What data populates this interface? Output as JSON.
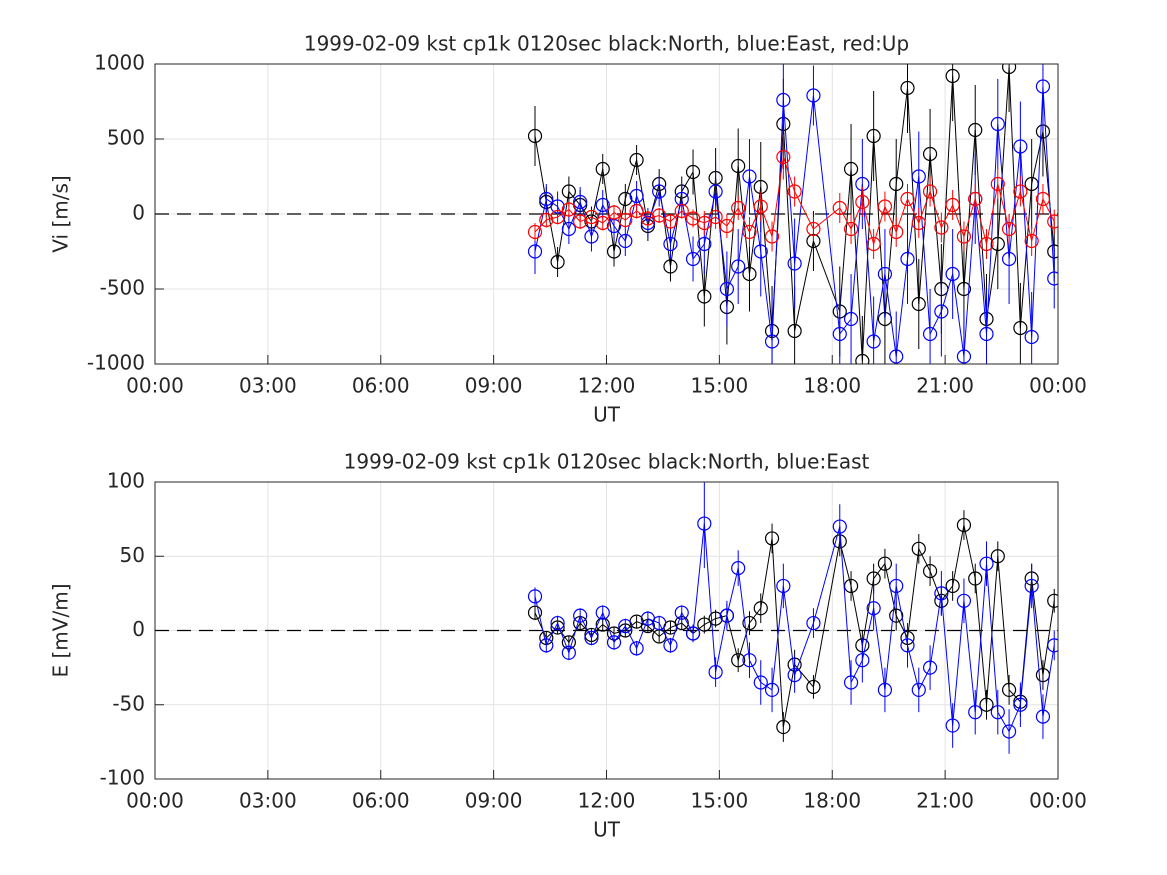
{
  "chart_data": [
    {
      "type": "errorbar",
      "title": "1999-02-09 kst cp1k 0120sec black:North, blue:East, red:Up",
      "xlabel": "UT",
      "ylabel": "Vi [m/s]",
      "xlim": [
        0,
        24
      ],
      "ylim": [
        -1000,
        1000
      ],
      "grid": true,
      "xticks": [
        {
          "value": 0,
          "label": "00:00"
        },
        {
          "value": 3,
          "label": "03:00"
        },
        {
          "value": 6,
          "label": "06:00"
        },
        {
          "value": 9,
          "label": "09:00"
        },
        {
          "value": 12,
          "label": "12:00"
        },
        {
          "value": 15,
          "label": "15:00"
        },
        {
          "value": 18,
          "label": "18:00"
        },
        {
          "value": 21,
          "label": "21:00"
        },
        {
          "value": 24,
          "label": "00:00"
        }
      ],
      "yticks": [
        -1000,
        -500,
        0,
        500,
        1000
      ],
      "x": [
        10.1,
        10.4,
        10.7,
        11.0,
        11.3,
        11.6,
        11.9,
        12.2,
        12.5,
        12.8,
        13.1,
        13.4,
        13.7,
        14.0,
        14.3,
        14.6,
        14.9,
        15.2,
        15.5,
        15.8,
        16.1,
        16.4,
        16.7,
        17.0,
        17.5,
        18.2,
        18.5,
        18.8,
        19.1,
        19.4,
        19.7,
        20.0,
        20.3,
        20.6,
        20.9,
        21.2,
        21.5,
        21.8,
        22.1,
        22.4,
        22.7,
        23.0,
        23.3,
        23.6,
        23.9
      ],
      "series": [
        {
          "color": "#000000",
          "values": [
            520,
            80,
            -320,
            150,
            60,
            -50,
            300,
            -250,
            100,
            360,
            -80,
            200,
            -350,
            150,
            280,
            -550,
            240,
            -620,
            320,
            -400,
            180,
            -780,
            600,
            -780,
            -180,
            -650,
            300,
            -980,
            520,
            -700,
            200,
            840,
            -600,
            400,
            -500,
            920,
            -500,
            560,
            -700,
            -200,
            980,
            -760,
            200,
            550,
            -250
          ],
          "errors": [
            200,
            100,
            100,
            100,
            100,
            100,
            100,
            100,
            100,
            100,
            100,
            100,
            100,
            100,
            150,
            200,
            200,
            250,
            250,
            250,
            300,
            300,
            300,
            300,
            200,
            300,
            300,
            300,
            300,
            300,
            300,
            300,
            300,
            300,
            300,
            300,
            300,
            300,
            300,
            300,
            300,
            300,
            300,
            300,
            200
          ]
        },
        {
          "color": "#0000ff",
          "values": [
            -250,
            100,
            50,
            -100,
            80,
            -150,
            60,
            -80,
            -180,
            120,
            -60,
            150,
            -200,
            100,
            -300,
            -200,
            150,
            -500,
            -350,
            250,
            -250,
            -850,
            760,
            -330,
            790,
            -800,
            -700,
            200,
            -850,
            -400,
            -950,
            -300,
            250,
            -800,
            -650,
            -400,
            -950,
            100,
            -800,
            600,
            -300,
            450,
            -820,
            850,
            -430
          ],
          "errors": [
            150,
            100,
            100,
            100,
            100,
            100,
            100,
            100,
            100,
            100,
            100,
            100,
            100,
            100,
            150,
            200,
            200,
            250,
            250,
            250,
            300,
            300,
            300,
            300,
            200,
            300,
            300,
            300,
            300,
            300,
            300,
            300,
            300,
            300,
            300,
            300,
            300,
            300,
            300,
            300,
            300,
            300,
            300,
            300,
            200
          ]
        },
        {
          "color": "#ff0000",
          "values": [
            -120,
            -40,
            -20,
            30,
            -50,
            -20,
            -60,
            10,
            -40,
            20,
            -30,
            -10,
            -50,
            20,
            -30,
            -60,
            -20,
            -80,
            40,
            -120,
            50,
            -150,
            380,
            150,
            -100,
            40,
            -100,
            80,
            -200,
            50,
            -120,
            100,
            -60,
            150,
            -90,
            60,
            -150,
            100,
            -200,
            200,
            -100,
            150,
            -180,
            100,
            -50
          ],
          "errors": [
            60,
            50,
            50,
            50,
            50,
            50,
            50,
            50,
            50,
            50,
            50,
            50,
            50,
            50,
            60,
            80,
            80,
            80,
            80,
            100,
            100,
            100,
            150,
            100,
            80,
            100,
            100,
            100,
            100,
            100,
            100,
            100,
            100,
            100,
            100,
            100,
            100,
            100,
            100,
            100,
            100,
            100,
            100,
            100,
            80
          ]
        }
      ]
    },
    {
      "type": "errorbar",
      "title": "1999-02-09 kst cp1k 0120sec black:North, blue:East",
      "xlabel": "UT",
      "ylabel": "E [mV/m]",
      "xlim": [
        0,
        24
      ],
      "ylim": [
        -100,
        100
      ],
      "grid": true,
      "xticks": [
        {
          "value": 0,
          "label": "00:00"
        },
        {
          "value": 3,
          "label": "03:00"
        },
        {
          "value": 6,
          "label": "06:00"
        },
        {
          "value": 9,
          "label": "09:00"
        },
        {
          "value": 12,
          "label": "12:00"
        },
        {
          "value": 15,
          "label": "15:00"
        },
        {
          "value": 18,
          "label": "18:00"
        },
        {
          "value": 21,
          "label": "21:00"
        },
        {
          "value": 24,
          "label": "00:00"
        }
      ],
      "yticks": [
        -100,
        -50,
        0,
        50,
        100
      ],
      "x": [
        10.1,
        10.4,
        10.7,
        11.0,
        11.3,
        11.6,
        11.9,
        12.2,
        12.5,
        12.8,
        13.1,
        13.4,
        13.7,
        14.0,
        14.3,
        14.6,
        14.9,
        15.2,
        15.5,
        15.8,
        16.1,
        16.4,
        16.7,
        17.0,
        17.5,
        18.2,
        18.5,
        18.8,
        19.1,
        19.4,
        19.7,
        20.0,
        20.3,
        20.6,
        20.9,
        21.2,
        21.5,
        21.8,
        22.1,
        22.4,
        22.7,
        23.0,
        23.3,
        23.6,
        23.9
      ],
      "series": [
        {
          "color": "#000000",
          "values": [
            12,
            -5,
            2,
            -8,
            5,
            -3,
            4,
            -2,
            0,
            6,
            3,
            -4,
            2,
            5,
            -2,
            4,
            8,
            10,
            -20,
            5,
            15,
            62,
            -65,
            -23,
            -38,
            60,
            30,
            -10,
            35,
            45,
            10,
            -5,
            55,
            40,
            20,
            30,
            71,
            35,
            -50,
            50,
            -40,
            -48,
            35,
            -30,
            20
          ],
          "errors": [
            5,
            4,
            4,
            4,
            4,
            4,
            4,
            4,
            4,
            4,
            4,
            4,
            4,
            4,
            5,
            6,
            6,
            8,
            8,
            8,
            10,
            10,
            10,
            10,
            8,
            10,
            10,
            10,
            10,
            10,
            10,
            10,
            10,
            10,
            10,
            10,
            10,
            10,
            10,
            10,
            10,
            10,
            10,
            10,
            8
          ]
        },
        {
          "color": "#0000ff",
          "values": [
            23,
            -10,
            5,
            -15,
            10,
            -5,
            12,
            -8,
            3,
            -12,
            8,
            5,
            -10,
            12,
            -2,
            72,
            -28,
            10,
            42,
            -20,
            -35,
            -40,
            30,
            -30,
            5,
            70,
            -35,
            -20,
            15,
            -40,
            30,
            -10,
            -40,
            -25,
            25,
            -64,
            20,
            -55,
            45,
            -55,
            -68,
            -50,
            30,
            -58,
            -10
          ],
          "errors": [
            6,
            5,
            5,
            5,
            5,
            5,
            5,
            5,
            5,
            5,
            5,
            5,
            5,
            5,
            6,
            30,
            10,
            10,
            12,
            12,
            15,
            15,
            15,
            12,
            10,
            15,
            15,
            15,
            15,
            15,
            15,
            15,
            15,
            15,
            15,
            15,
            15,
            15,
            15,
            15,
            15,
            15,
            15,
            15,
            10
          ]
        }
      ]
    }
  ]
}
